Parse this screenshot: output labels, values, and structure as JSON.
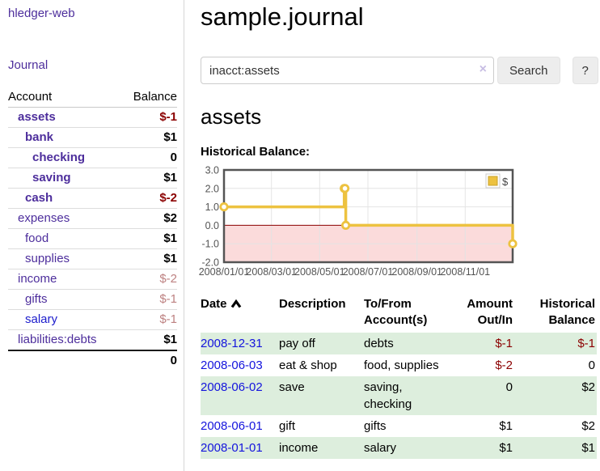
{
  "colors": {
    "accent_purple": "#4d2e9c",
    "link_blue": "#1c1ccc",
    "date_link_blue": "#1414dd",
    "negative_strong": "#8b0000",
    "negative_pale": "#bd8181",
    "row_stripe_green": "#ddeedd",
    "chart_series_yellow": "#edc240",
    "chart_negative_fill": "#fbdbdb",
    "chart_zero_line": "#8b0000"
  },
  "sidebar": {
    "app_title": "hledger-web",
    "journal_label": "Journal",
    "accounts_table": {
      "header_account": "Account",
      "header_balance": "Balance",
      "rows": [
        {
          "name": "assets",
          "balance": "$-1",
          "indent": 1,
          "bold": true,
          "neg": "strong"
        },
        {
          "name": "bank",
          "balance": "$1",
          "indent": 2,
          "bold": true,
          "neg": "none"
        },
        {
          "name": "checking",
          "balance": "0",
          "indent": 3,
          "bold": true,
          "neg": "none"
        },
        {
          "name": "saving",
          "balance": "$1",
          "indent": 3,
          "bold": true,
          "neg": "none"
        },
        {
          "name": "cash",
          "balance": "$-2",
          "indent": 2,
          "bold": true,
          "neg": "strong"
        },
        {
          "name": "expenses",
          "balance": "$2",
          "indent": 1,
          "bold": false,
          "neg": "none"
        },
        {
          "name": "food",
          "balance": "$1",
          "indent": 2,
          "bold": false,
          "neg": "none"
        },
        {
          "name": "supplies",
          "balance": "$1",
          "indent": 2,
          "bold": false,
          "neg": "none"
        },
        {
          "name": "income",
          "balance": "$-2",
          "indent": 1,
          "bold": false,
          "neg": "pale"
        },
        {
          "name": "gifts",
          "balance": "$-1",
          "indent": 2,
          "bold": false,
          "neg": "pale"
        },
        {
          "name": "salary",
          "balance": "$-1",
          "indent": 2,
          "bold": false,
          "neg": "pale",
          "blue_link": true
        },
        {
          "name": "liabilities:debts",
          "balance": "$1",
          "indent": 1,
          "bold": false,
          "neg": "none"
        }
      ],
      "total": "0"
    }
  },
  "main": {
    "title": "sample.journal",
    "search": {
      "value": "inacct:assets",
      "clear_icon": "×",
      "button_label": "Search",
      "help_label": "?"
    },
    "account_heading": "assets",
    "chart_label": "Historical Balance:",
    "transactions": {
      "headers": [
        "Date",
        "Description",
        "To/From Account(s)",
        "Amount Out/In",
        "Historical Balance"
      ],
      "sort": {
        "column": "Date",
        "direction": "ascending"
      },
      "rows": [
        {
          "date": "2008-12-31",
          "description": "pay off",
          "accounts": "debts",
          "amount": "$-1",
          "amount_negative": true,
          "balance": "$-1",
          "balance_negative": true
        },
        {
          "date": "2008-06-03",
          "description": "eat & shop",
          "accounts": "food, supplies",
          "amount": "$-2",
          "amount_negative": true,
          "balance": "0",
          "balance_negative": false
        },
        {
          "date": "2008-06-02",
          "description": "save",
          "accounts": "saving, checking",
          "amount": "0",
          "amount_negative": false,
          "balance": "$2",
          "balance_negative": false
        },
        {
          "date": "2008-06-01",
          "description": "gift",
          "accounts": "gifts",
          "amount": "$1",
          "amount_negative": false,
          "balance": "$2",
          "balance_negative": false
        },
        {
          "date": "2008-01-01",
          "description": "income",
          "accounts": "salary",
          "amount": "$1",
          "amount_negative": false,
          "balance": "$1",
          "balance_negative": false
        }
      ]
    }
  },
  "chart_data": {
    "type": "line",
    "mode": "steps",
    "title": "Historical Balance:",
    "series": [
      {
        "name": "$",
        "color": "#edc240",
        "points": [
          [
            "2008-01-01",
            1
          ],
          [
            "2008-06-01",
            2
          ],
          [
            "2008-06-02",
            2
          ],
          [
            "2008-06-03",
            0
          ],
          [
            "2008-12-31",
            -1
          ]
        ]
      }
    ],
    "xlim": [
      "2008-01-01",
      "2008-12-31"
    ],
    "ylim": [
      -2,
      3
    ],
    "y_ticks": [
      "3.0",
      "2.0",
      "1.0",
      "0.0",
      "-1.0",
      "-2.0"
    ],
    "x_ticks": [
      [
        "2008-01-01",
        "2008/01/01"
      ],
      [
        "2008-03-01",
        "2008/03/01"
      ],
      [
        "2008-05-01",
        "2008/05/01"
      ],
      [
        "2008-07-01",
        "2008/07/01"
      ],
      [
        "2008-09-01",
        "2008/09/01"
      ],
      [
        "2008-11-01",
        "2008/11/01"
      ]
    ],
    "grid": true,
    "legend_position": "top-right",
    "negative_fill": "#fbdbdb",
    "zero_line_color": "#8b0000"
  }
}
